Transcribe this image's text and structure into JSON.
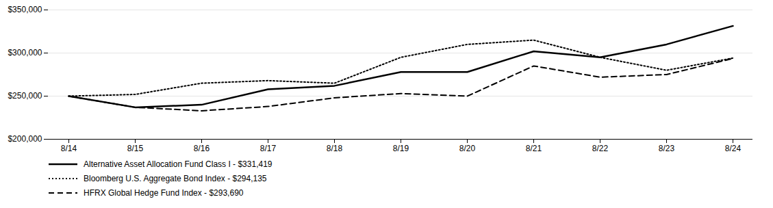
{
  "chart_data": {
    "type": "line",
    "categories": [
      "8/14",
      "8/15",
      "8/16",
      "8/17",
      "8/18",
      "8/19",
      "8/20",
      "8/21",
      "8/22",
      "8/23",
      "8/24"
    ],
    "series": [
      {
        "name": "Alternative Asset Allocation Fund Class I - $331,419",
        "color": "#000000",
        "line_style": "solid",
        "values": [
          250000,
          237000,
          240000,
          258000,
          262000,
          278000,
          278000,
          302000,
          295000,
          310000,
          331419
        ]
      },
      {
        "name": "Bloomberg U.S. Aggregate Bond Index - $294,135",
        "color": "#000000",
        "line_style": "dotted",
        "values": [
          250000,
          252000,
          265000,
          268000,
          265000,
          295000,
          310000,
          315000,
          295000,
          280000,
          294135
        ]
      },
      {
        "name": "HFRX Global Hedge Fund Index - $293,690",
        "color": "#000000",
        "line_style": "dashed",
        "values": [
          250000,
          237000,
          233000,
          238000,
          248000,
          253000,
          250000,
          285000,
          272000,
          275000,
          293690
        ]
      }
    ],
    "ylim": [
      200000,
      350000
    ],
    "yticks": [
      {
        "value": 200000,
        "label": "$200,000"
      },
      {
        "value": 250000,
        "label": "$250,000"
      },
      {
        "value": 300000,
        "label": "$300,000"
      },
      {
        "value": 350000,
        "label": "$350,000"
      }
    ],
    "grid": true,
    "legend": "bottom"
  }
}
